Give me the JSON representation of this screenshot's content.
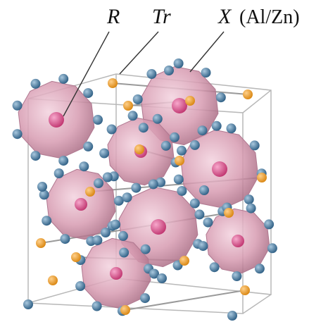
{
  "labels": [
    {
      "symbol": "R"
    },
    {
      "symbol": "Tr"
    },
    {
      "symbol": "X",
      "detail": "(Al/Zn)"
    }
  ]
}
